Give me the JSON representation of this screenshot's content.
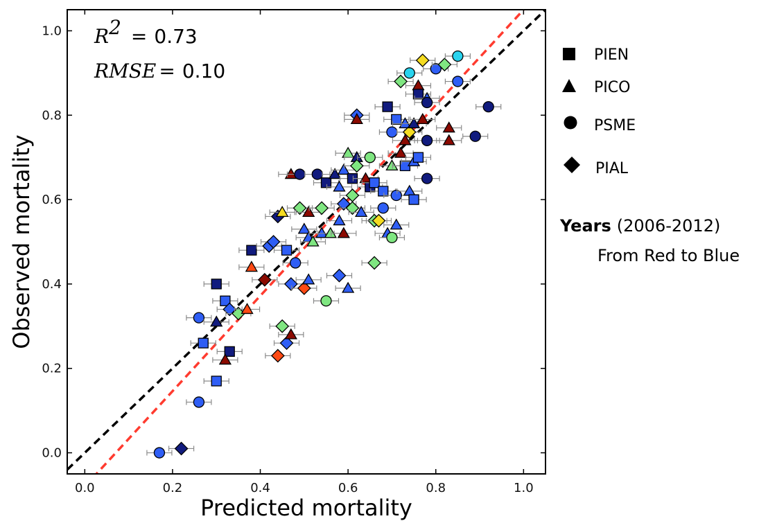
{
  "chart_data": {
    "type": "scatter",
    "xlabel": "Predicted mortality",
    "ylabel": "Observed mortality",
    "xlim": [
      -0.04,
      1.05
    ],
    "ylim": [
      -0.05,
      1.05
    ],
    "xticks": [
      "0.0",
      "0.2",
      "0.4",
      "0.6",
      "0.8",
      "1.0"
    ],
    "yticks": [
      "0.0",
      "0.2",
      "0.4",
      "0.6",
      "0.8",
      "1.0"
    ],
    "grid": false,
    "annotations": {
      "r2_symbol": "R",
      "r2_sup": "2",
      "r2_eq": "=",
      "r2_value": "0.73",
      "rmse_symbol": "RMSE",
      "rmse_eq": "=",
      "rmse_value": "0.10"
    },
    "reference_lines": [
      {
        "style": "black-dashed",
        "color": "#000000",
        "slope": 1.0,
        "intercept": 0.0
      },
      {
        "style": "red-dashed",
        "color": "#ff3b2f",
        "slope": 1.13,
        "intercept": -0.08
      }
    ],
    "legend": {
      "placement": "right",
      "entries": [
        {
          "marker": "square",
          "label": "PIEN"
        },
        {
          "marker": "triangle",
          "label": "PICO"
        },
        {
          "marker": "circle",
          "label": "PSME"
        },
        {
          "marker": "diamond",
          "label": "PIAL"
        }
      ],
      "years_title": "Years",
      "years_range": "(2006-2012)",
      "years_subtitle": "From Red to Blue"
    },
    "color_scale": [
      "#8b0a00",
      "#ff4a14",
      "#f5dc21",
      "#7fe681",
      "#29d3ee",
      "#2f5ef5",
      "#111b7e"
    ],
    "points": [
      {
        "x": 0.17,
        "y": 0.0,
        "m": "circle",
        "c": 5
      },
      {
        "x": 0.22,
        "y": 0.01,
        "m": "diamond",
        "c": 6
      },
      {
        "x": 0.26,
        "y": 0.12,
        "m": "circle",
        "c": 5
      },
      {
        "x": 0.3,
        "y": 0.17,
        "m": "square",
        "c": 5
      },
      {
        "x": 0.33,
        "y": 0.24,
        "m": "square",
        "c": 6
      },
      {
        "x": 0.32,
        "y": 0.22,
        "m": "triangle",
        "c": 0
      },
      {
        "x": 0.27,
        "y": 0.26,
        "m": "square",
        "c": 5
      },
      {
        "x": 0.26,
        "y": 0.32,
        "m": "circle",
        "c": 5
      },
      {
        "x": 0.3,
        "y": 0.31,
        "m": "triangle",
        "c": 6
      },
      {
        "x": 0.3,
        "y": 0.4,
        "m": "square",
        "c": 6
      },
      {
        "x": 0.32,
        "y": 0.36,
        "m": "square",
        "c": 5
      },
      {
        "x": 0.33,
        "y": 0.34,
        "m": "diamond",
        "c": 5
      },
      {
        "x": 0.35,
        "y": 0.33,
        "m": "diamond",
        "c": 3
      },
      {
        "x": 0.37,
        "y": 0.34,
        "m": "triangle",
        "c": 1
      },
      {
        "x": 0.38,
        "y": 0.44,
        "m": "triangle",
        "c": 1
      },
      {
        "x": 0.38,
        "y": 0.48,
        "m": "square",
        "c": 6
      },
      {
        "x": 0.41,
        "y": 0.41,
        "m": "diamond",
        "c": 0
      },
      {
        "x": 0.42,
        "y": 0.49,
        "m": "diamond",
        "c": 5
      },
      {
        "x": 0.43,
        "y": 0.5,
        "m": "diamond",
        "c": 5
      },
      {
        "x": 0.44,
        "y": 0.56,
        "m": "diamond",
        "c": 6
      },
      {
        "x": 0.45,
        "y": 0.57,
        "m": "triangle",
        "c": 2
      },
      {
        "x": 0.46,
        "y": 0.48,
        "m": "square",
        "c": 5
      },
      {
        "x": 0.47,
        "y": 0.4,
        "m": "diamond",
        "c": 5
      },
      {
        "x": 0.48,
        "y": 0.45,
        "m": "circle",
        "c": 5
      },
      {
        "x": 0.44,
        "y": 0.23,
        "m": "diamond",
        "c": 1
      },
      {
        "x": 0.45,
        "y": 0.3,
        "m": "diamond",
        "c": 3
      },
      {
        "x": 0.46,
        "y": 0.26,
        "m": "diamond",
        "c": 5
      },
      {
        "x": 0.47,
        "y": 0.28,
        "m": "triangle",
        "c": 0
      },
      {
        "x": 0.47,
        "y": 0.66,
        "m": "triangle",
        "c": 0
      },
      {
        "x": 0.49,
        "y": 0.66,
        "m": "circle",
        "c": 6
      },
      {
        "x": 0.49,
        "y": 0.58,
        "m": "diamond",
        "c": 3
      },
      {
        "x": 0.5,
        "y": 0.39,
        "m": "diamond",
        "c": 1
      },
      {
        "x": 0.5,
        "y": 0.53,
        "m": "triangle",
        "c": 5
      },
      {
        "x": 0.51,
        "y": 0.57,
        "m": "triangle",
        "c": 0
      },
      {
        "x": 0.51,
        "y": 0.51,
        "m": "triangle",
        "c": 5
      },
      {
        "x": 0.51,
        "y": 0.41,
        "m": "triangle",
        "c": 5
      },
      {
        "x": 0.52,
        "y": 0.5,
        "m": "triangle",
        "c": 3
      },
      {
        "x": 0.53,
        "y": 0.66,
        "m": "circle",
        "c": 6
      },
      {
        "x": 0.54,
        "y": 0.58,
        "m": "diamond",
        "c": 3
      },
      {
        "x": 0.54,
        "y": 0.52,
        "m": "triangle",
        "c": 5
      },
      {
        "x": 0.55,
        "y": 0.36,
        "m": "circle",
        "c": 3
      },
      {
        "x": 0.55,
        "y": 0.64,
        "m": "square",
        "c": 6
      },
      {
        "x": 0.56,
        "y": 0.52,
        "m": "triangle",
        "c": 3
      },
      {
        "x": 0.57,
        "y": 0.66,
        "m": "triangle",
        "c": 6
      },
      {
        "x": 0.58,
        "y": 0.55,
        "m": "triangle",
        "c": 5
      },
      {
        "x": 0.58,
        "y": 0.42,
        "m": "diamond",
        "c": 5
      },
      {
        "x": 0.58,
        "y": 0.63,
        "m": "triangle",
        "c": 5
      },
      {
        "x": 0.59,
        "y": 0.59,
        "m": "diamond",
        "c": 5
      },
      {
        "x": 0.59,
        "y": 0.52,
        "m": "triangle",
        "c": 0
      },
      {
        "x": 0.59,
        "y": 0.67,
        "m": "triangle",
        "c": 5
      },
      {
        "x": 0.6,
        "y": 0.39,
        "m": "triangle",
        "c": 5
      },
      {
        "x": 0.6,
        "y": 0.71,
        "m": "triangle",
        "c": 3
      },
      {
        "x": 0.61,
        "y": 0.61,
        "m": "diamond",
        "c": 3
      },
      {
        "x": 0.61,
        "y": 0.58,
        "m": "diamond",
        "c": 3
      },
      {
        "x": 0.61,
        "y": 0.65,
        "m": "square",
        "c": 6
      },
      {
        "x": 0.62,
        "y": 0.7,
        "m": "triangle",
        "c": 6
      },
      {
        "x": 0.62,
        "y": 0.8,
        "m": "diamond",
        "c": 5
      },
      {
        "x": 0.62,
        "y": 0.79,
        "m": "triangle",
        "c": 0
      },
      {
        "x": 0.62,
        "y": 0.68,
        "m": "diamond",
        "c": 3
      },
      {
        "x": 0.63,
        "y": 0.57,
        "m": "triangle",
        "c": 5
      },
      {
        "x": 0.64,
        "y": 0.65,
        "m": "triangle",
        "c": 0
      },
      {
        "x": 0.65,
        "y": 0.7,
        "m": "circle",
        "c": 3
      },
      {
        "x": 0.65,
        "y": 0.63,
        "m": "square",
        "c": 6
      },
      {
        "x": 0.66,
        "y": 0.55,
        "m": "diamond",
        "c": 3
      },
      {
        "x": 0.66,
        "y": 0.45,
        "m": "diamond",
        "c": 3
      },
      {
        "x": 0.66,
        "y": 0.64,
        "m": "square",
        "c": 5
      },
      {
        "x": 0.67,
        "y": 0.55,
        "m": "diamond",
        "c": 2
      },
      {
        "x": 0.68,
        "y": 0.58,
        "m": "circle",
        "c": 5
      },
      {
        "x": 0.68,
        "y": 0.62,
        "m": "square",
        "c": 5
      },
      {
        "x": 0.69,
        "y": 0.52,
        "m": "triangle",
        "c": 5
      },
      {
        "x": 0.69,
        "y": 0.82,
        "m": "square",
        "c": 6
      },
      {
        "x": 0.7,
        "y": 0.51,
        "m": "circle",
        "c": 3
      },
      {
        "x": 0.7,
        "y": 0.68,
        "m": "triangle",
        "c": 3
      },
      {
        "x": 0.7,
        "y": 0.76,
        "m": "circle",
        "c": 5
      },
      {
        "x": 0.71,
        "y": 0.54,
        "m": "triangle",
        "c": 5
      },
      {
        "x": 0.71,
        "y": 0.61,
        "m": "circle",
        "c": 5
      },
      {
        "x": 0.71,
        "y": 0.79,
        "m": "square",
        "c": 5
      },
      {
        "x": 0.72,
        "y": 0.88,
        "m": "diamond",
        "c": 3
      },
      {
        "x": 0.72,
        "y": 0.71,
        "m": "triangle",
        "c": 0
      },
      {
        "x": 0.73,
        "y": 0.68,
        "m": "square",
        "c": 5
      },
      {
        "x": 0.73,
        "y": 0.74,
        "m": "triangle",
        "c": 0
      },
      {
        "x": 0.73,
        "y": 0.78,
        "m": "triangle",
        "c": 5
      },
      {
        "x": 0.74,
        "y": 0.76,
        "m": "diamond",
        "c": 2
      },
      {
        "x": 0.74,
        "y": 0.62,
        "m": "triangle",
        "c": 5
      },
      {
        "x": 0.74,
        "y": 0.9,
        "m": "circle",
        "c": 4
      },
      {
        "x": 0.75,
        "y": 0.78,
        "m": "triangle",
        "c": 6
      },
      {
        "x": 0.75,
        "y": 0.6,
        "m": "square",
        "c": 5
      },
      {
        "x": 0.75,
        "y": 0.69,
        "m": "triangle",
        "c": 5
      },
      {
        "x": 0.76,
        "y": 0.7,
        "m": "square",
        "c": 5
      },
      {
        "x": 0.76,
        "y": 0.87,
        "m": "triangle",
        "c": 0
      },
      {
        "x": 0.76,
        "y": 0.85,
        "m": "square",
        "c": 6
      },
      {
        "x": 0.77,
        "y": 0.79,
        "m": "triangle",
        "c": 0
      },
      {
        "x": 0.77,
        "y": 0.93,
        "m": "diamond",
        "c": 2
      },
      {
        "x": 0.78,
        "y": 0.84,
        "m": "triangle",
        "c": 5
      },
      {
        "x": 0.78,
        "y": 0.83,
        "m": "circle",
        "c": 6
      },
      {
        "x": 0.78,
        "y": 0.74,
        "m": "circle",
        "c": 6
      },
      {
        "x": 0.78,
        "y": 0.65,
        "m": "circle",
        "c": 6
      },
      {
        "x": 0.8,
        "y": 0.91,
        "m": "circle",
        "c": 5
      },
      {
        "x": 0.82,
        "y": 0.92,
        "m": "diamond",
        "c": 3
      },
      {
        "x": 0.83,
        "y": 0.77,
        "m": "triangle",
        "c": 0
      },
      {
        "x": 0.83,
        "y": 0.74,
        "m": "triangle",
        "c": 0
      },
      {
        "x": 0.85,
        "y": 0.94,
        "m": "circle",
        "c": 4
      },
      {
        "x": 0.85,
        "y": 0.88,
        "m": "circle",
        "c": 5
      },
      {
        "x": 0.89,
        "y": 0.75,
        "m": "circle",
        "c": 6
      },
      {
        "x": 0.92,
        "y": 0.82,
        "m": "circle",
        "c": 6
      }
    ]
  }
}
